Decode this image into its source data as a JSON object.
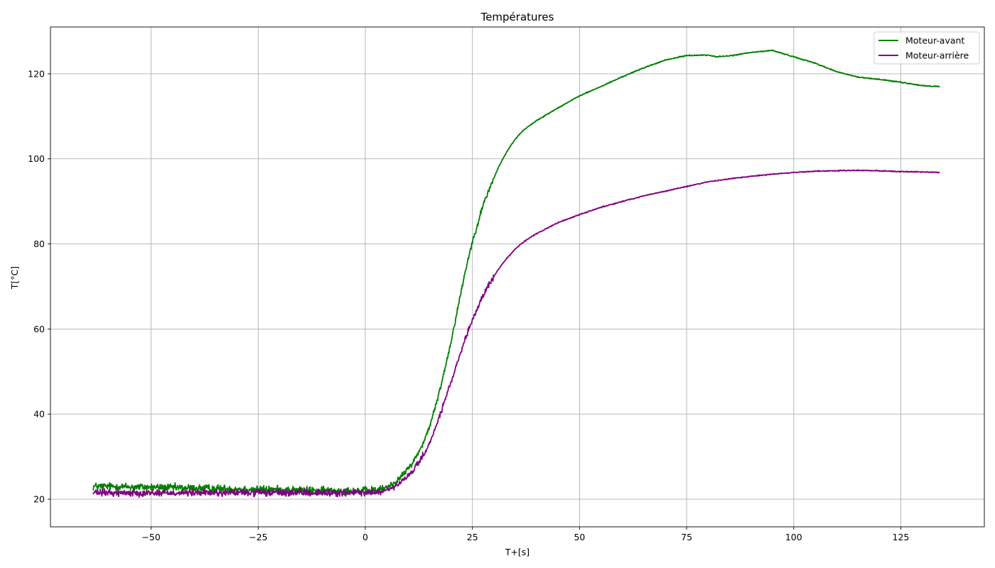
{
  "chart_data": {
    "type": "line",
    "title": "Températures",
    "xlabel": "T+[s]",
    "ylabel": "T[°C]",
    "xlim": [
      -73.5,
      144.5
    ],
    "ylim": [
      13.5,
      131.0
    ],
    "x_ticks": [
      -50,
      -25,
      0,
      25,
      50,
      75,
      100,
      125
    ],
    "x_tick_labels": [
      "−50",
      "−25",
      "0",
      "25",
      "50",
      "75",
      "100",
      "125"
    ],
    "y_ticks": [
      20,
      40,
      60,
      80,
      100,
      120
    ],
    "y_tick_labels": [
      "20",
      "40",
      "60",
      "80",
      "100",
      "120"
    ],
    "grid": true,
    "legend_position": "top-right",
    "series": [
      {
        "name": "Moteur-avant",
        "color": "#008000",
        "x": [
          -63.5,
          -60,
          -55,
          -50,
          -45,
          -40,
          -35,
          -30,
          -25,
          -20,
          -15,
          -10,
          -5,
          0,
          3,
          5,
          7,
          9,
          11,
          13,
          15,
          17,
          19,
          20,
          21,
          22,
          23,
          24,
          25,
          26,
          27,
          28,
          29,
          30,
          31,
          32,
          33,
          34,
          35,
          36,
          37,
          38,
          40,
          42,
          45,
          50,
          55,
          60,
          65,
          70,
          75,
          80,
          82,
          85,
          90,
          95,
          100,
          105,
          110,
          115,
          120,
          125,
          130,
          134
        ],
        "y": [
          23.0,
          23.0,
          22.9,
          22.8,
          22.7,
          22.6,
          22.5,
          22.4,
          22.3,
          22.2,
          22.1,
          22.0,
          22.0,
          22.0,
          22.1,
          22.8,
          24.0,
          26.0,
          28.5,
          32.0,
          37.0,
          44.0,
          52.5,
          57.0,
          62.0,
          67.0,
          72.0,
          76.5,
          80.5,
          84.0,
          87.5,
          90.5,
          93.0,
          95.5,
          97.8,
          99.8,
          101.6,
          103.2,
          104.6,
          105.8,
          106.8,
          107.6,
          109.0,
          110.2,
          112.0,
          114.8,
          117.0,
          119.3,
          121.4,
          123.2,
          124.3,
          124.4,
          124.0,
          124.2,
          125.0,
          125.5,
          124.0,
          122.5,
          120.5,
          119.2,
          118.7,
          118.0,
          117.2,
          117.0
        ],
        "noise": 0.9
      },
      {
        "name": "Moteur-arrière",
        "color": "#800080",
        "x": [
          -63.5,
          -60,
          -55,
          -50,
          -45,
          -40,
          -35,
          -30,
          -25,
          -20,
          -15,
          -10,
          -5,
          0,
          3,
          5,
          7,
          9,
          11,
          13,
          15,
          17,
          19,
          20,
          21,
          22,
          23,
          24,
          25,
          26,
          27,
          28,
          29,
          30,
          31,
          32,
          33,
          34,
          35,
          36,
          37,
          38,
          40,
          42,
          45,
          50,
          55,
          60,
          65,
          70,
          75,
          80,
          85,
          90,
          95,
          100,
          105,
          110,
          115,
          120,
          125,
          130,
          134
        ],
        "y": [
          21.5,
          21.5,
          21.5,
          21.5,
          21.5,
          21.5,
          21.5,
          21.5,
          21.5,
          21.5,
          21.5,
          21.5,
          21.5,
          21.5,
          21.6,
          22.0,
          23.0,
          24.5,
          26.5,
          29.5,
          33.0,
          38.5,
          44.5,
          47.5,
          50.5,
          53.5,
          56.5,
          59.5,
          62.0,
          64.5,
          66.8,
          68.9,
          70.7,
          72.3,
          73.9,
          75.3,
          76.6,
          77.7,
          78.8,
          79.7,
          80.5,
          81.2,
          82.4,
          83.5,
          85.0,
          86.9,
          88.6,
          90.0,
          91.3,
          92.4,
          93.5,
          94.6,
          95.3,
          95.9,
          96.4,
          96.8,
          97.1,
          97.2,
          97.3,
          97.2,
          97.0,
          96.9,
          96.8
        ],
        "noise": 0.8
      }
    ]
  }
}
